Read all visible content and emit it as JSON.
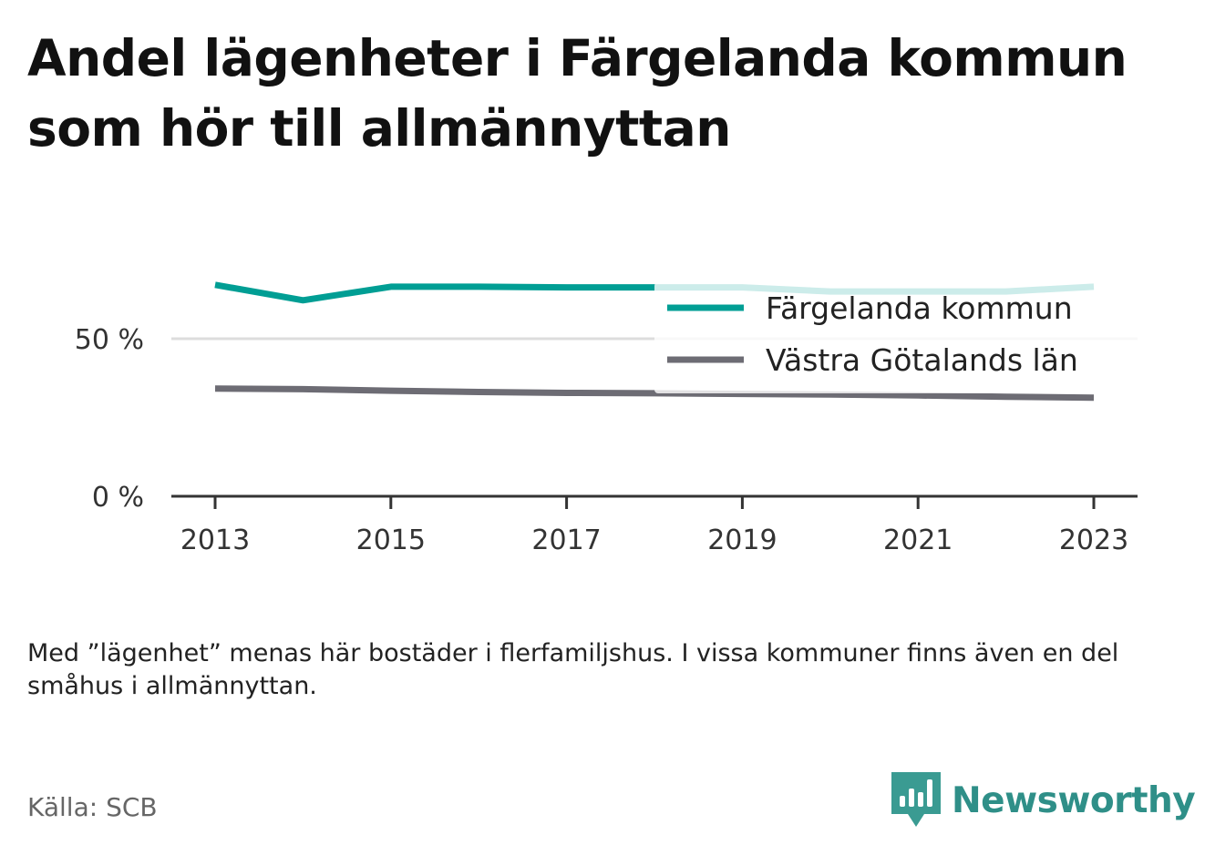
{
  "title": "Andel lägenheter i Färgelanda kommun som hör till allmännyttan",
  "note": "Med ”lägenhet” menas här bostäder i flerfamiljshus. I vissa kommuner finns även en del småhus i allmännyttan.",
  "source": "Källa: SCB",
  "brand": {
    "name": "Newsworthy",
    "icon": "newsworthy-logo-icon"
  },
  "colors": {
    "kommun": "#009e94",
    "lan": "#6d6c74",
    "axis": "#333333",
    "grid": "#dddddd",
    "brand": "#2f8f88"
  },
  "chart_data": {
    "type": "line",
    "x": [
      2013,
      2014,
      2015,
      2016,
      2017,
      2018,
      2019,
      2020,
      2021,
      2022,
      2023
    ],
    "x_tick_labels": [
      "2013",
      "2015",
      "2017",
      "2019",
      "2021",
      "2023"
    ],
    "y_tick_labels": [
      "0 %",
      "50 %"
    ],
    "ylim": [
      0,
      60
    ],
    "grid": true,
    "legend_position": "top-right",
    "series": [
      {
        "name": "Färgelanda kommun",
        "color": "#009e94",
        "values": [
          67.1,
          62.2,
          66.5,
          66.5,
          66.3,
          66.3,
          66.3,
          65.0,
          65.0,
          65.0,
          66.5
        ]
      },
      {
        "name": "Västra Götalands län",
        "color": "#6d6c74",
        "values": [
          34.2,
          34.0,
          33.5,
          33.1,
          32.8,
          32.7,
          32.5,
          32.3,
          32.0,
          31.6,
          31.3
        ]
      }
    ]
  }
}
